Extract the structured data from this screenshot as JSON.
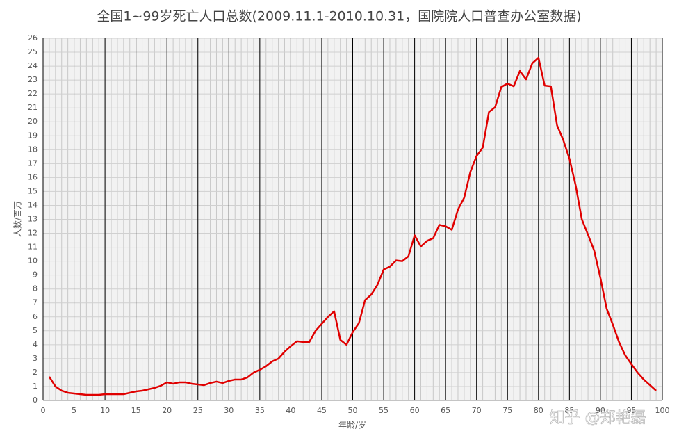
{
  "chart_data": {
    "type": "line",
    "title": "全国1~99岁死亡人口总数(2009.11.1-2010.10.31，国院院人口普查办公室数据)",
    "x_label": "年龄/岁",
    "y_label": "人数/百万",
    "annotation": "知乎 @郑艳磊",
    "color": "#e00000",
    "x": [
      1,
      2,
      3,
      4,
      5,
      6,
      7,
      8,
      9,
      10,
      11,
      12,
      13,
      14,
      15,
      16,
      17,
      18,
      19,
      20,
      21,
      22,
      23,
      24,
      25,
      26,
      27,
      28,
      29,
      30,
      31,
      32,
      33,
      34,
      35,
      36,
      37,
      38,
      39,
      40,
      41,
      42,
      43,
      44,
      45,
      46,
      47,
      48,
      49,
      50,
      51,
      52,
      53,
      54,
      55,
      56,
      57,
      58,
      59,
      60,
      61,
      62,
      63,
      64,
      65,
      66,
      67,
      68,
      69,
      70,
      71,
      72,
      73,
      74,
      75,
      76,
      77,
      78,
      79,
      80,
      81,
      82,
      83,
      84,
      85,
      86,
      87,
      88,
      89,
      90,
      91,
      92,
      93,
      94,
      95,
      96,
      97,
      98,
      99
    ],
    "values": [
      1.7,
      1.0,
      0.7,
      0.55,
      0.5,
      0.45,
      0.4,
      0.4,
      0.4,
      0.45,
      0.45,
      0.45,
      0.45,
      0.55,
      0.65,
      0.7,
      0.8,
      0.9,
      1.05,
      1.3,
      1.2,
      1.3,
      1.3,
      1.2,
      1.15,
      1.1,
      1.25,
      1.35,
      1.25,
      1.4,
      1.5,
      1.5,
      1.65,
      2.0,
      2.2,
      2.45,
      2.8,
      3.0,
      3.5,
      3.9,
      4.25,
      4.2,
      4.2,
      5.0,
      5.5,
      6.0,
      6.4,
      4.35,
      4.0,
      4.9,
      5.55,
      7.2,
      7.6,
      8.3,
      9.4,
      9.6,
      10.05,
      10.0,
      10.35,
      11.85,
      11.05,
      11.45,
      11.65,
      12.6,
      12.5,
      12.25,
      13.7,
      14.55,
      16.4,
      17.55,
      18.15,
      20.7,
      21.05,
      22.5,
      22.75,
      22.55,
      23.65,
      23.05,
      24.2,
      24.6,
      22.6,
      22.55,
      19.75,
      18.7,
      17.35,
      15.45,
      13.0,
      11.9,
      10.75,
      8.8,
      6.6,
      5.45,
      4.2,
      3.25,
      2.6,
      2.0,
      1.5,
      1.1,
      0.7
    ],
    "xlim": [
      0,
      100
    ],
    "xticks": [
      0,
      5,
      10,
      15,
      20,
      25,
      30,
      35,
      40,
      45,
      50,
      55,
      60,
      65,
      70,
      75,
      80,
      85,
      90,
      95,
      100
    ],
    "ylim": [
      0,
      26
    ],
    "yticks": [
      0,
      1,
      2,
      3,
      4,
      5,
      6,
      7,
      8,
      9,
      10,
      11,
      12,
      13,
      14,
      15,
      16,
      17,
      18,
      19,
      20,
      21,
      22,
      23,
      24,
      25,
      26
    ],
    "grid": true
  }
}
